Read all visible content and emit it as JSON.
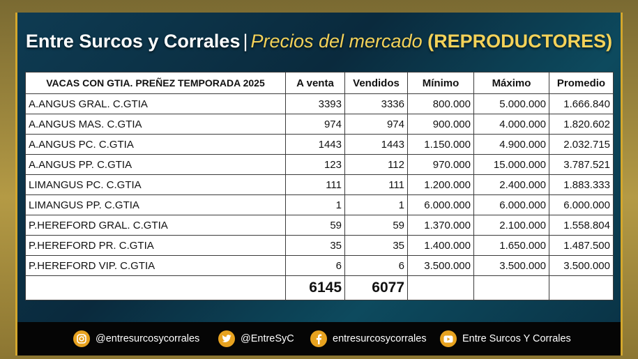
{
  "header": {
    "brand": "Entre Surcos y Corrales",
    "separator": "|",
    "subtitle": "Precios del mercado",
    "tag": "(REPRODUCTORES)"
  },
  "table": {
    "headers": [
      "VACAS CON GTIA. PREÑEZ TEMPORADA 2025",
      "A venta",
      "Vendidos",
      "Mínimo",
      "Máximo",
      "Promedio"
    ],
    "rows": [
      [
        "A.ANGUS GRAL. C.GTIA",
        "3393",
        "3336",
        "800.000",
        "5.000.000",
        "1.666.840"
      ],
      [
        "A.ANGUS MAS. C.GTIA",
        "974",
        "974",
        "900.000",
        "4.000.000",
        "1.820.602"
      ],
      [
        "A.ANGUS PC. C.GTIA",
        "1443",
        "1443",
        "1.150.000",
        "4.900.000",
        "2.032.715"
      ],
      [
        "A.ANGUS PP. C.GTIA",
        "123",
        "112",
        "970.000",
        "15.000.000",
        "3.787.521"
      ],
      [
        "LIMANGUS PC. C.GTIA",
        "111",
        "111",
        "1.200.000",
        "2.400.000",
        "1.883.333"
      ],
      [
        "LIMANGUS PP. C.GTIA",
        "1",
        "1",
        "6.000.000",
        "6.000.000",
        "6.000.000"
      ],
      [
        "P.HEREFORD GRAL. C.GTIA",
        "59",
        "59",
        "1.370.000",
        "2.100.000",
        "1.558.804"
      ],
      [
        "P.HEREFORD PR. C.GTIA",
        "35",
        "35",
        "1.400.000",
        "1.650.000",
        "1.487.500"
      ],
      [
        "P.HEREFORD VIP. C.GTIA",
        "6",
        "6",
        "3.500.000",
        "3.500.000",
        "3.500.000"
      ]
    ],
    "totals": {
      "a_venta": "6145",
      "vendidos": "6077"
    }
  },
  "footer": {
    "instagram": "@entresurcosycorrales",
    "twitter": "@EntreSyC",
    "facebook": "entresurcosycorrales",
    "youtube": "Entre Surcos Y Corrales",
    "icons": [
      "instagram-icon",
      "twitter-icon",
      "facebook-icon",
      "youtube-icon"
    ],
    "icon_color": "#e7a21f"
  },
  "colors": {
    "accent": "#f4d259",
    "frame": "#0e3b52",
    "border": "#d4a72c"
  }
}
